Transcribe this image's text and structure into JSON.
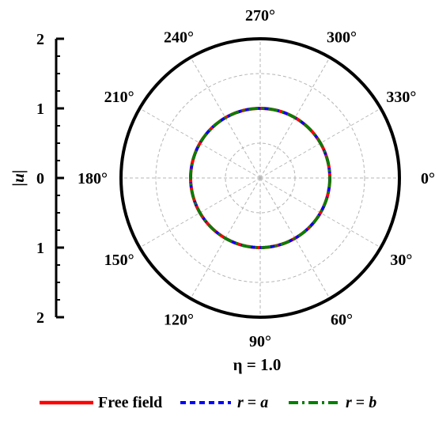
{
  "chart_data": {
    "type": "polar-line",
    "ylabel": "|u|",
    "radial_axis": {
      "ticks": [
        2,
        1,
        0,
        1,
        2
      ],
      "range": [
        0,
        2
      ]
    },
    "angular_axis": {
      "direction": "clockwise",
      "zero_at": "right",
      "unit": "°",
      "ticks": [
        0,
        30,
        60,
        90,
        120,
        150,
        180,
        210,
        240,
        270,
        300,
        330
      ],
      "tick_labels": [
        "0°",
        "30°",
        "60°",
        "90°",
        "120°",
        "150°",
        "180°",
        "210°",
        "240°",
        "270°",
        "300°",
        "330°"
      ]
    },
    "parameter_label": "η = 1.0",
    "grid": true,
    "legend_position": "bottom",
    "series": [
      {
        "name": "Free field",
        "style": "solid",
        "color": "#ff0000",
        "theta": [
          0,
          30,
          60,
          90,
          120,
          150,
          180,
          210,
          240,
          270,
          300,
          330,
          360
        ],
        "r": [
          1.0,
          1.0,
          1.0,
          1.0,
          1.0,
          1.0,
          1.0,
          1.0,
          1.0,
          1.0,
          1.0,
          1.0,
          1.0
        ]
      },
      {
        "name": "r = a",
        "style": "dashed",
        "color": "#0000ff",
        "theta": [
          0,
          30,
          60,
          90,
          120,
          150,
          180,
          210,
          240,
          270,
          300,
          330,
          360
        ],
        "r": [
          1.0,
          1.0,
          1.0,
          1.0,
          1.0,
          1.0,
          1.0,
          1.0,
          1.0,
          1.0,
          1.0,
          1.0,
          1.0
        ]
      },
      {
        "name": "r = b",
        "style": "dashdot",
        "color": "#008000",
        "theta": [
          0,
          30,
          60,
          90,
          120,
          150,
          180,
          210,
          240,
          270,
          300,
          330,
          360
        ],
        "r": [
          1.0,
          1.0,
          1.0,
          1.0,
          1.0,
          1.0,
          1.0,
          1.0,
          1.0,
          1.0,
          1.0,
          1.0,
          1.0
        ]
      }
    ],
    "legend": [
      {
        "text": "Free field",
        "prefix": "",
        "suffix": ""
      },
      {
        "text": "r = a",
        "prefix": "r",
        "suffix": " = a"
      },
      {
        "text": "r = b",
        "prefix": "r",
        "suffix": " = b"
      }
    ]
  }
}
